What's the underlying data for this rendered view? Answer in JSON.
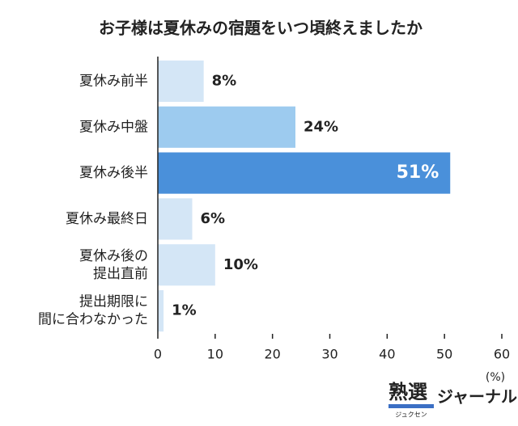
{
  "chart_data": {
    "type": "barh",
    "title": "お子様は夏休みの宿題をいつ頃終えましたか",
    "categories": [
      [
        "夏休み前半"
      ],
      [
        "夏休み中盤"
      ],
      [
        "夏休み後半"
      ],
      [
        "夏休み最終日"
      ],
      [
        "夏休み後の",
        "提出直前"
      ],
      [
        "提出期限に",
        "間に合わなかった"
      ]
    ],
    "values": [
      8,
      24,
      51,
      6,
      10,
      1
    ],
    "value_labels": [
      "8%",
      "24%",
      "51%",
      "6%",
      "10%",
      "1%"
    ],
    "colors": [
      "#d4e6f6",
      "#9dcbef",
      "#4a90da",
      "#d4e6f6",
      "#d4e6f6",
      "#d4e6f6"
    ],
    "xlim": [
      0,
      60
    ],
    "xticks": [
      0,
      10,
      20,
      30,
      40,
      50,
      60
    ],
    "xlabel": "(%)"
  },
  "logo": {
    "main": "熟選",
    "sub": "ジュクセン",
    "suffix": "ジャーナル"
  }
}
